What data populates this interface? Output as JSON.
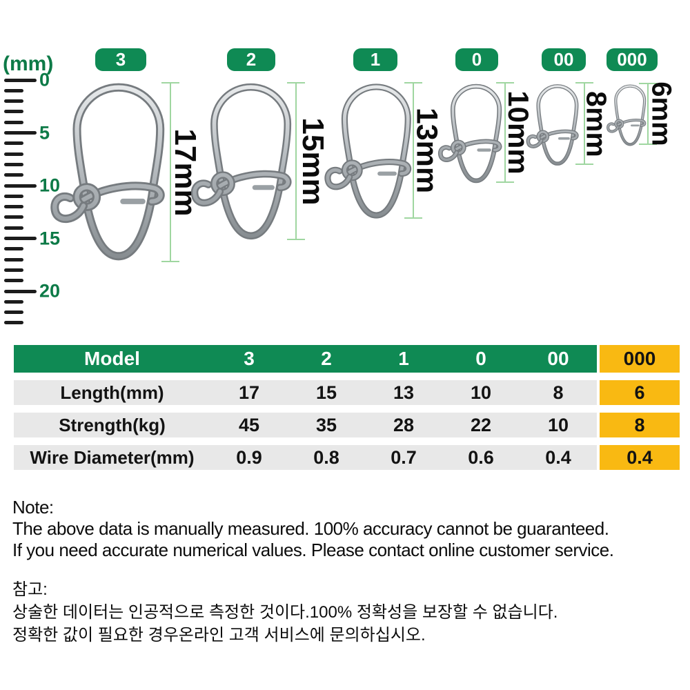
{
  "colors": {
    "green": "#0f8a54",
    "yellow": "#f9b912",
    "row_bg": "#e8e8e8",
    "dim_line": "#9fd6a0",
    "ruler_label": "#0d7a47"
  },
  "ruler": {
    "unit_label": "(mm)",
    "major_labels": [
      "0",
      "5",
      "10",
      "15",
      "20"
    ]
  },
  "snaps": [
    {
      "model": "3",
      "length_label": "17mm"
    },
    {
      "model": "2",
      "length_label": "15mm"
    },
    {
      "model": "1",
      "length_label": "13mm"
    },
    {
      "model": "0",
      "length_label": "10mm"
    },
    {
      "model": "00",
      "length_label": "8mm"
    },
    {
      "model": "000",
      "length_label": "6mm"
    }
  ],
  "table": {
    "header_label": "Model",
    "columns": [
      "3",
      "2",
      "1",
      "0",
      "00",
      "000"
    ],
    "highlighted_column": "000",
    "rows": [
      {
        "label": "Length(mm)",
        "values": [
          "17",
          "15",
          "13",
          "10",
          "8",
          "6"
        ]
      },
      {
        "label": "Strength(kg)",
        "values": [
          "45",
          "35",
          "28",
          "22",
          "10",
          "8"
        ]
      },
      {
        "label": "Wire Diameter(mm)",
        "values": [
          "0.9",
          "0.8",
          "0.7",
          "0.6",
          "0.4",
          "0.4"
        ]
      }
    ]
  },
  "note_en": {
    "title": "Note:",
    "lines": [
      "The above data is manually measured. 100% accuracy cannot be guaranteed.",
      "If you need accurate numerical values. Please contact online customer service."
    ]
  },
  "note_ko": {
    "title": "참고:",
    "lines": [
      "상술한 데이터는 인공적으로 측정한 것이다.100% 정확성을 보장할 수 없습니다.",
      "정확한 값이 필요한 경우온라인 고객 서비스에 문의하십시오."
    ]
  }
}
